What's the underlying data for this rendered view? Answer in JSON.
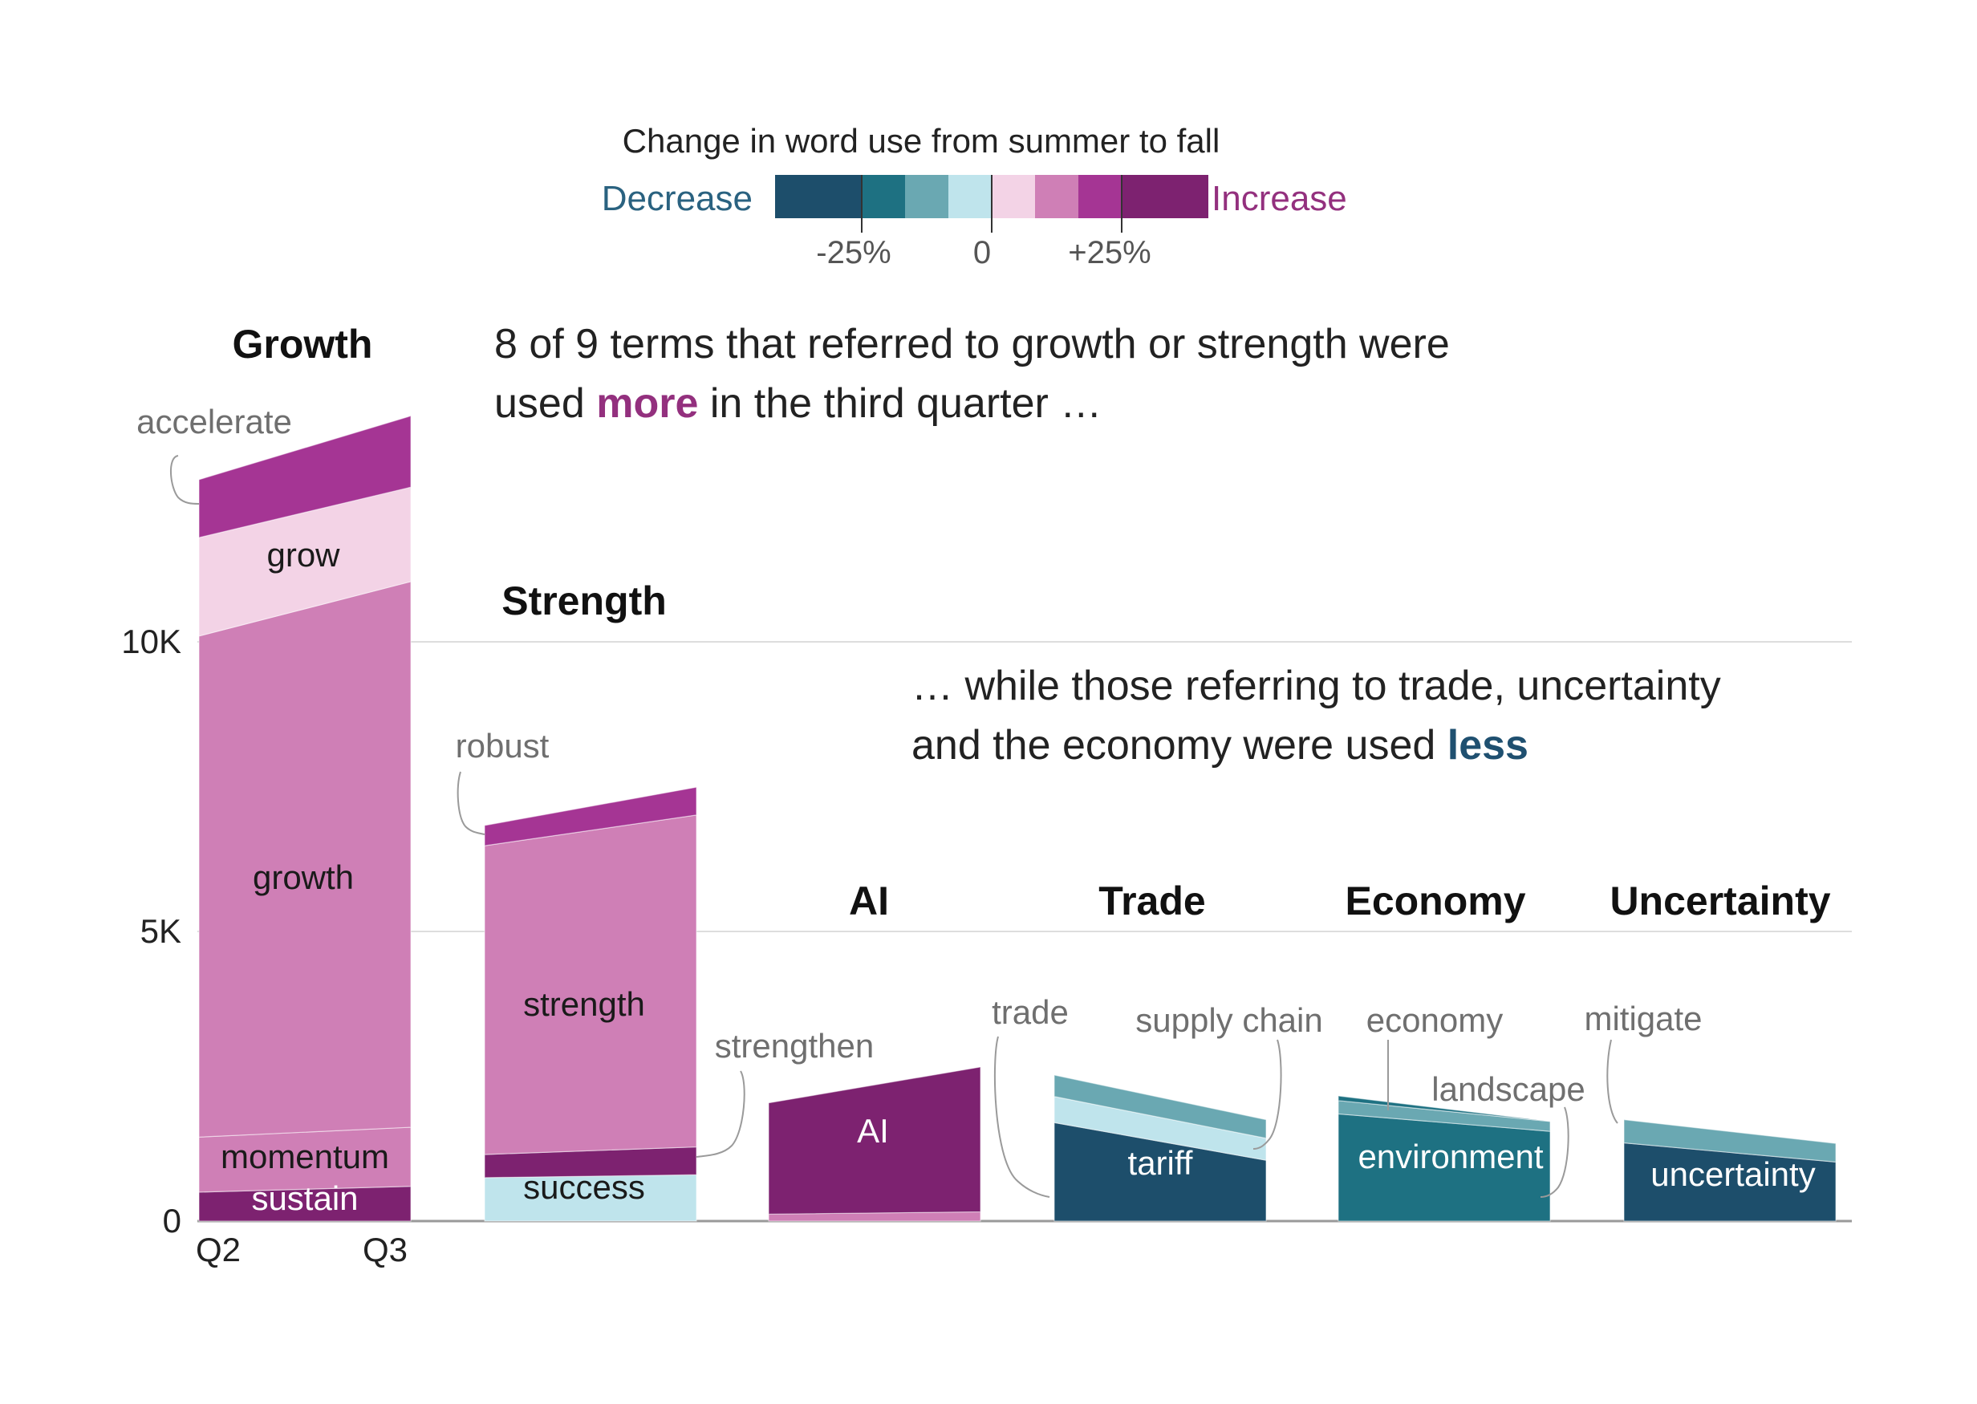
{
  "legend": {
    "title": "Change in word use from summer to fall",
    "decrease_label": "Decrease",
    "increase_label": "Increase",
    "ticks": [
      "-25%",
      "0",
      "+25%"
    ],
    "colors": [
      "#1d4e6b",
      "#1e7182",
      "#6aa8b2",
      "#bfe4ec",
      "#f3d3e6",
      "#cf7fb6",
      "#a53594",
      "#7d2270"
    ],
    "decrease_color": "#2a6280",
    "increase_color": "#93307e"
  },
  "annotations": {
    "top": {
      "line1": "8 of 9 terms that referred to growth or strength were",
      "line2_pre": "used ",
      "line2_bold": "more",
      "line2_post": " in the third quarter …"
    },
    "bottom": {
      "line1": "… while those referring to trade, uncertainty",
      "line2_pre": "and the economy were used ",
      "line2_bold": "less"
    }
  },
  "chart_data": {
    "type": "area",
    "title": "Change in word use from summer to fall",
    "x": [
      "Q2",
      "Q3"
    ],
    "xlabel": "",
    "ylabel": "",
    "yticks": [
      {
        "value": 0,
        "label": "0"
      },
      {
        "value": 5000,
        "label": "5K"
      },
      {
        "value": 10000,
        "label": "10K"
      }
    ],
    "ylim": [
      0,
      14000
    ],
    "groups": [
      {
        "name": "Growth",
        "series": [
          {
            "name": "sustain",
            "values": [
              500,
              600
            ],
            "color": "#7d2270",
            "label": "sustain",
            "label_pos": "inside"
          },
          {
            "name": "momentum",
            "values": [
              950,
              1020
            ],
            "color": "#cf7fb6",
            "label": "momentum",
            "label_pos": "inside"
          },
          {
            "name": "growth",
            "values": [
              8650,
              9420
            ],
            "color": "#cf7fb6",
            "label": "growth",
            "label_pos": "inside"
          },
          {
            "name": "grow",
            "values": [
              1700,
              1630
            ],
            "color": "#f3d3e6",
            "label": "grow",
            "label_pos": "inside"
          },
          {
            "name": "accelerate",
            "values": [
              1000,
              1230
            ],
            "color": "#a53594",
            "label": "accelerate",
            "label_pos": "outside"
          }
        ]
      },
      {
        "name": "Strength",
        "series": [
          {
            "name": "success",
            "values": [
              750,
              800
            ],
            "color": "#bfe4ec",
            "label": "success",
            "label_pos": "inside"
          },
          {
            "name": "strengthen",
            "values": [
              400,
              480
            ],
            "color": "#7d2270",
            "label": "strengthen",
            "label_pos": "outside"
          },
          {
            "name": "strength",
            "values": [
              5330,
              5730
            ],
            "color": "#cf7fb6",
            "label": "strength",
            "label_pos": "inside"
          },
          {
            "name": "robust",
            "values": [
              350,
              480
            ],
            "color": "#a53594",
            "label": "robust",
            "label_pos": "outside"
          }
        ]
      },
      {
        "name": "AI",
        "series": [
          {
            "name": "AI other",
            "values": [
              120,
              160
            ],
            "color": "#cf7fb6",
            "label": "",
            "label_pos": "none"
          },
          {
            "name": "AI",
            "values": [
              1920,
              2500
            ],
            "color": "#7d2270",
            "label": "AI",
            "label_pos": "inside"
          }
        ]
      },
      {
        "name": "Trade",
        "series": [
          {
            "name": "tariff",
            "values": [
              1700,
              1050
            ],
            "color": "#1d4e6b",
            "label": "tariff",
            "label_pos": "inside"
          },
          {
            "name": "trade",
            "values": [
              450,
              380
            ],
            "color": "#bfe4ec",
            "label": "trade",
            "label_pos": "outside"
          },
          {
            "name": "supply chain",
            "values": [
              370,
              320
            ],
            "color": "#6aa8b2",
            "label": "supply chain",
            "label_pos": "outside"
          }
        ]
      },
      {
        "name": "Economy",
        "series": [
          {
            "name": "environment",
            "values": [
              1850,
              1550
            ],
            "color": "#1e7182",
            "label": "environment",
            "label_pos": "inside"
          },
          {
            "name": "economy",
            "values": [
              230,
              170
            ],
            "color": "#6aa8b2",
            "label": "economy",
            "label_pos": "outside"
          },
          {
            "name": "landscape",
            "values": [
              80,
              0
            ],
            "color": "#1e7182",
            "label": "landscape",
            "label_pos": "outside"
          }
        ]
      },
      {
        "name": "Uncertainty",
        "series": [
          {
            "name": "uncertainty",
            "values": [
              1350,
              1020
            ],
            "color": "#1d4e6b",
            "label": "uncertainty",
            "label_pos": "inside"
          },
          {
            "name": "mitigate",
            "values": [
              400,
              320
            ],
            "color": "#6aa8b2",
            "label": "mitigate",
            "label_pos": "outside"
          }
        ]
      }
    ]
  }
}
